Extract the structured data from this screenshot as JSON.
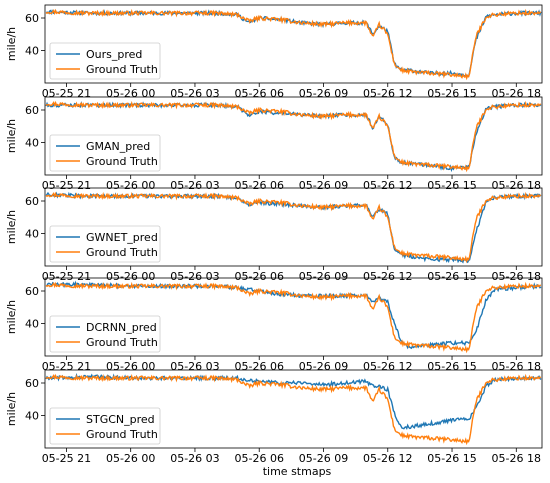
{
  "chart_data": {
    "type": "line",
    "xlabel": "time stmaps",
    "x_ticks": [
      "05-25 21",
      "05-26 00",
      "05-26 03",
      "05-26 06",
      "05-26 09",
      "05-26 12",
      "05-26 15",
      "05-26 18"
    ],
    "x_tick_hours": [
      21,
      24,
      27,
      30,
      33,
      36,
      39,
      42
    ],
    "x_range_hours": [
      20.0,
      43.2
    ],
    "grid": false,
    "legend_position": "lower-left",
    "colors": {
      "pred": "#1f77b4",
      "truth": "#ff7f0e"
    },
    "truth_name": "Ground Truth",
    "truth": {
      "hours": [
        20.0,
        22.0,
        24.0,
        26.0,
        28.0,
        29.0,
        29.5,
        30.0,
        31.0,
        32.0,
        33.0,
        34.0,
        35.0,
        35.3,
        35.6,
        36.0,
        36.3,
        36.6,
        37.0,
        38.0,
        39.0,
        39.8,
        40.1,
        40.6,
        41.0,
        42.0,
        43.0
      ],
      "values": [
        64,
        63,
        63,
        63,
        63,
        62,
        58,
        60,
        59,
        57,
        56,
        57,
        57,
        48,
        56,
        50,
        32,
        28,
        27,
        26,
        25,
        24,
        48,
        61,
        62,
        63,
        63
      ]
    },
    "panels": [
      {
        "name": "Ours_pred",
        "ylabel": "mile/h",
        "ylim": [
          20,
          68
        ],
        "yticks": [
          40,
          60
        ],
        "pred": {
          "hours": [
            20.0,
            22.0,
            24.0,
            26.0,
            28.0,
            29.0,
            29.5,
            30.0,
            31.0,
            32.0,
            33.0,
            34.0,
            35.0,
            35.3,
            35.6,
            36.0,
            36.3,
            36.6,
            37.0,
            38.0,
            39.0,
            39.8,
            40.1,
            40.6,
            41.0,
            42.0,
            43.0
          ],
          "values": [
            64,
            63,
            63,
            63,
            63,
            62,
            57,
            60,
            59,
            57,
            56,
            57,
            57,
            50,
            55,
            52,
            32,
            28,
            28,
            26,
            26,
            25,
            46,
            61,
            62,
            63,
            63
          ]
        }
      },
      {
        "name": "GMAN_pred",
        "ylabel": "mile/h",
        "ylim": [
          20,
          68
        ],
        "yticks": [
          40,
          60
        ],
        "pred": {
          "hours": [
            20.0,
            22.0,
            24.0,
            26.0,
            28.0,
            29.0,
            29.5,
            30.0,
            31.0,
            32.0,
            33.0,
            34.0,
            35.0,
            35.3,
            35.6,
            36.0,
            36.3,
            36.6,
            37.0,
            38.0,
            39.0,
            39.8,
            40.1,
            40.6,
            41.0,
            42.0,
            43.0
          ],
          "values": [
            63,
            63,
            63,
            63,
            63,
            62,
            57,
            59,
            58,
            57,
            56,
            57,
            57,
            49,
            56,
            51,
            31,
            28,
            27,
            26,
            24,
            25,
            45,
            61,
            62,
            63,
            63
          ]
        }
      },
      {
        "name": "GWNET_pred",
        "ylabel": "mile/h",
        "ylim": [
          20,
          68
        ],
        "yticks": [
          40,
          60
        ],
        "pred": {
          "hours": [
            20.0,
            22.0,
            24.0,
            26.0,
            28.0,
            29.0,
            29.5,
            30.0,
            31.0,
            32.0,
            33.0,
            34.0,
            35.0,
            35.3,
            35.6,
            36.0,
            36.3,
            36.6,
            37.0,
            38.0,
            39.0,
            39.8,
            40.1,
            40.6,
            41.0,
            42.0,
            43.0
          ],
          "values": [
            64,
            63,
            63,
            63,
            63,
            62,
            58,
            59,
            58,
            57,
            56,
            57,
            58,
            50,
            55,
            52,
            30,
            27,
            26,
            24,
            24,
            23,
            40,
            60,
            62,
            63,
            63
          ]
        }
      },
      {
        "name": "DCRNN_pred",
        "ylabel": "mile/h",
        "ylim": [
          20,
          68
        ],
        "yticks": [
          40,
          60
        ],
        "pred": {
          "hours": [
            20.0,
            22.0,
            24.0,
            26.0,
            28.0,
            29.0,
            29.5,
            30.0,
            31.0,
            32.0,
            33.0,
            34.0,
            35.0,
            35.3,
            35.6,
            36.0,
            36.3,
            36.6,
            37.0,
            38.0,
            39.0,
            39.8,
            40.1,
            40.6,
            41.0,
            42.0,
            43.0
          ],
          "values": [
            64,
            64,
            63,
            63,
            63,
            62,
            61,
            60,
            58,
            57,
            57,
            57,
            57,
            54,
            56,
            53,
            40,
            30,
            25,
            27,
            28,
            28,
            34,
            55,
            61,
            62,
            63
          ]
        }
      },
      {
        "name": "STGCN_pred",
        "ylabel": "mile/h",
        "ylim": [
          20,
          68
        ],
        "yticks": [
          40,
          60
        ],
        "pred": {
          "hours": [
            20.0,
            22.0,
            24.0,
            26.0,
            28.0,
            29.0,
            29.5,
            30.0,
            31.0,
            32.0,
            33.0,
            34.0,
            35.0,
            35.3,
            35.6,
            36.0,
            36.3,
            36.6,
            37.0,
            38.0,
            39.0,
            39.8,
            40.1,
            40.6,
            41.0,
            42.0,
            43.0
          ],
          "values": [
            63,
            64,
            63,
            63,
            63,
            63,
            62,
            61,
            60,
            60,
            59,
            60,
            61,
            58,
            58,
            56,
            42,
            33,
            33,
            35,
            37,
            38,
            44,
            58,
            62,
            63,
            63
          ]
        }
      }
    ]
  }
}
